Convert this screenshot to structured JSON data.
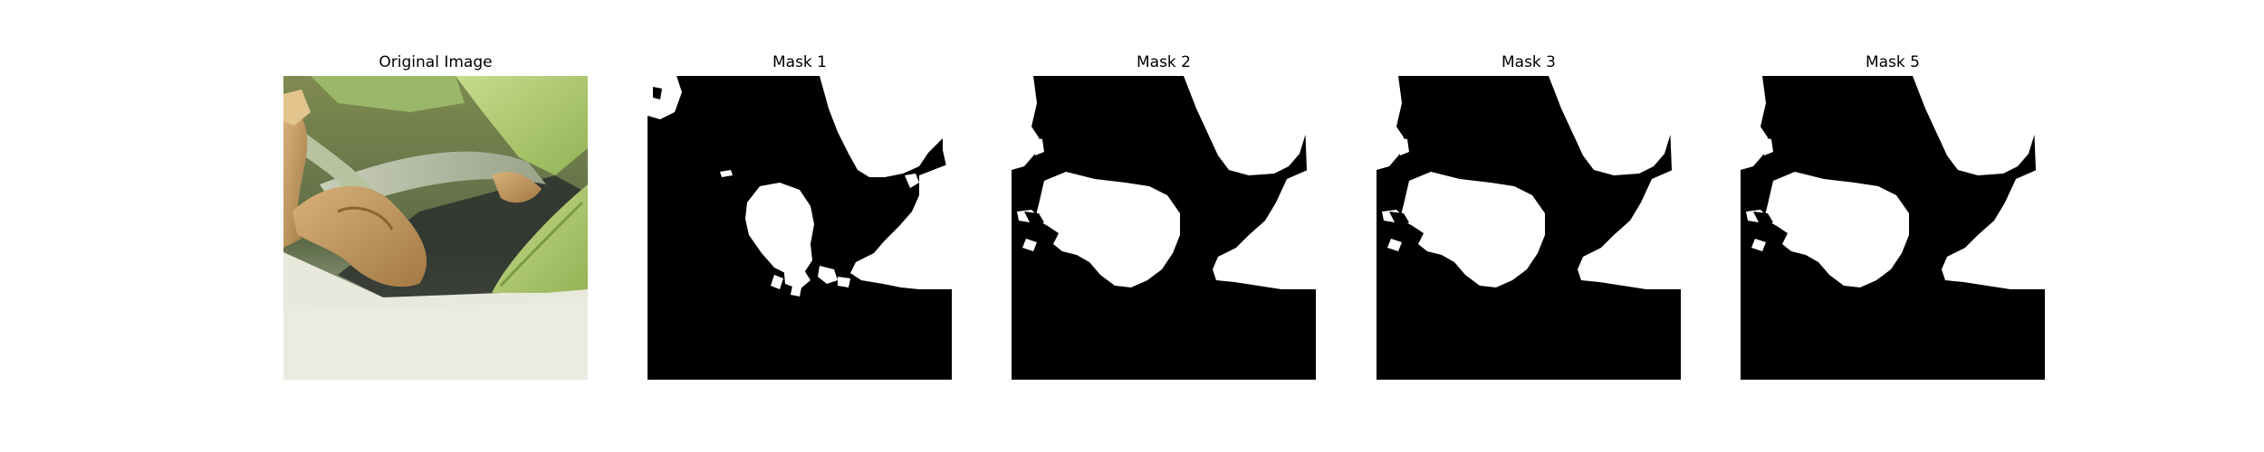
{
  "figure": {
    "panels": [
      {
        "title": "Original Image",
        "kind": "photo"
      },
      {
        "title": "Mask 1",
        "kind": "mask"
      },
      {
        "title": "Mask 2",
        "kind": "mask"
      },
      {
        "title": "Mask 3",
        "kind": "mask"
      },
      {
        "title": "Mask 5",
        "kind": "mask"
      }
    ]
  },
  "colors": {
    "mask_foreground": "#ffffff",
    "mask_background": "#000000",
    "leaf_green": "#a9c46a",
    "dry_leaf": "#c49a5e",
    "surface": "#e6e6d9"
  }
}
